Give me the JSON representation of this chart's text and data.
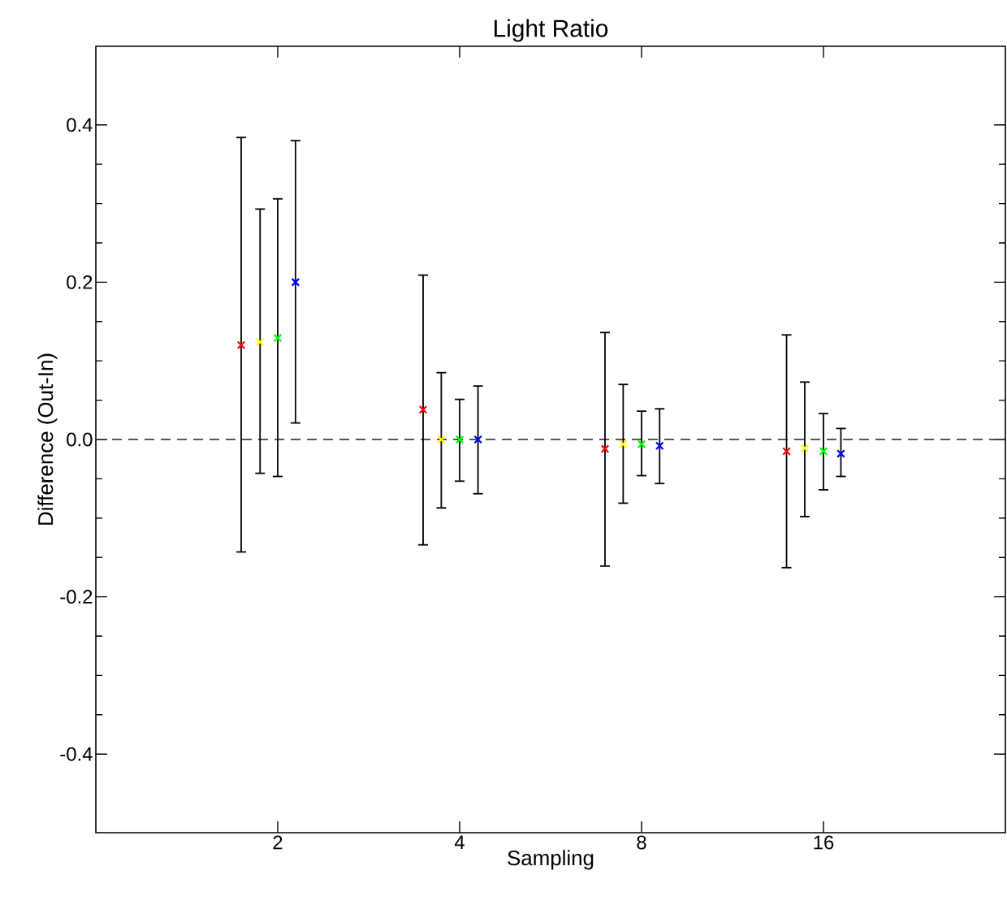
{
  "chart_data": {
    "type": "scatter",
    "title": "Light Ratio",
    "xlabel": "Sampling",
    "ylabel": "Difference (Out-In)",
    "xlim": [
      1,
      32
    ],
    "xticks": [
      2,
      4,
      8,
      16
    ],
    "log": "x",
    "ylim": [
      -0.5,
      0.5
    ],
    "yticks": [
      -0.4,
      -0.2,
      {
        "value": 0,
        "label": "0.0"
      },
      0.2,
      0.4
    ],
    "marker": "cross",
    "grid": false,
    "ref_lines": [
      {
        "axis": "y",
        "value": 0,
        "color": "#404040",
        "line_style": "dashed"
      }
    ],
    "series": [
      {
        "color": "#ff0000",
        "x": [
          1.74,
          3.48,
          6.96,
          13.9
        ],
        "values": [
          0.12,
          0.038,
          -0.012,
          -0.015
        ],
        "errors": [
          [
            -0.143,
            0.384
          ],
          [
            -0.134,
            0.209
          ],
          [
            -0.161,
            0.136
          ],
          [
            -0.163,
            0.133
          ]
        ]
      },
      {
        "color": "#ffff00",
        "x": [
          1.87,
          3.73,
          7.46,
          14.9
        ],
        "values": [
          0.124,
          0.0,
          -0.006,
          -0.011
        ],
        "errors": [
          [
            -0.043,
            0.293
          ],
          [
            -0.087,
            0.085
          ],
          [
            -0.081,
            0.07
          ],
          [
            -0.098,
            0.073
          ]
        ]
      },
      {
        "color": "#00ff00",
        "x": [
          2,
          4,
          8,
          16
        ],
        "values": [
          0.129,
          0.0,
          -0.006,
          -0.015
        ],
        "errors": [
          [
            -0.047,
            0.306
          ],
          [
            -0.053,
            0.051
          ],
          [
            -0.046,
            0.036
          ],
          [
            -0.064,
            0.033
          ]
        ]
      },
      {
        "color": "#0000ff",
        "x": [
          2.14,
          4.29,
          8.57,
          17.1
        ],
        "values": [
          0.2,
          0.0,
          -0.008,
          -0.018
        ],
        "errors": [
          [
            0.021,
            0.38
          ],
          [
            -0.069,
            0.068
          ],
          [
            -0.056,
            0.039
          ],
          [
            -0.047,
            0.014
          ]
        ]
      }
    ]
  }
}
